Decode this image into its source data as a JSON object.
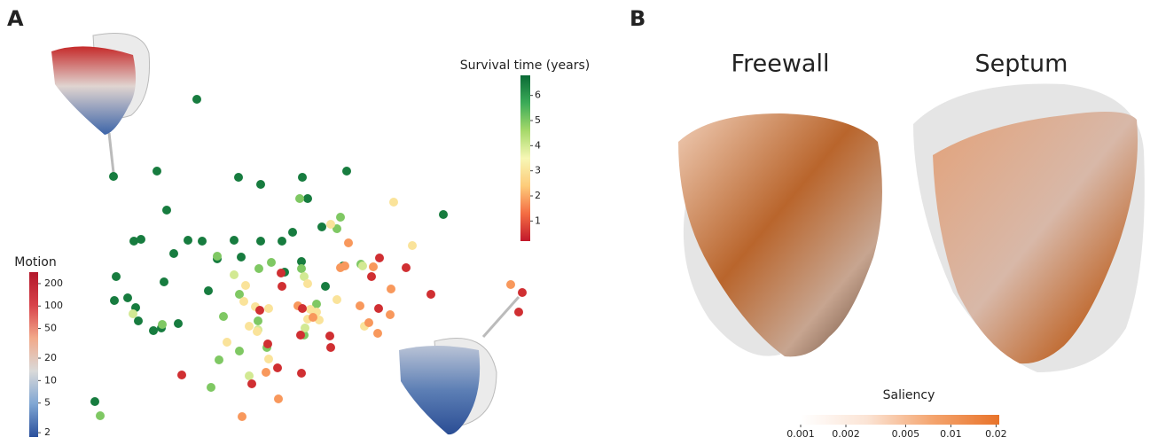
{
  "panels": [
    "A",
    "B"
  ],
  "heart_labels": [
    "Freewall",
    "Septum"
  ],
  "chart_data": [
    {
      "type": "scatter",
      "x": [
        222,
        128,
        177,
        269,
        294,
        341,
        391,
        188,
        500,
        151,
        159,
        212,
        228,
        264,
        294,
        318,
        196,
        245,
        272,
        363,
        340,
        387,
        131,
        185,
        235,
        129,
        144,
        153,
        156,
        173,
        182,
        201,
        321,
        367,
        107,
        347,
        330,
        338,
        384,
        380,
        245,
        270,
        306,
        292,
        340,
        407,
        252,
        247,
        183,
        291,
        301,
        238,
        113,
        270,
        357,
        343,
        150,
        264,
        344,
        291,
        281,
        409,
        343,
        444,
        373,
        465,
        277,
        275,
        288,
        303,
        380,
        347,
        360,
        411,
        281,
        256,
        290,
        303,
        347,
        350,
        357,
        576,
        393,
        384,
        421,
        389,
        441,
        406,
        336,
        353,
        440,
        416,
        426,
        314,
        273,
        300,
        589,
        585,
        317,
        318,
        428,
        458,
        486,
        293,
        341,
        427,
        372,
        339,
        373,
        302,
        205,
        284,
        340,
        313,
        419
      ],
      "y": [
        386,
        299,
        305,
        298,
        290,
        298,
        305,
        261,
        256,
        226,
        228,
        227,
        226,
        227,
        226,
        226,
        212,
        206,
        208,
        242,
        203,
        198,
        186,
        180,
        170,
        159,
        162,
        151,
        136,
        125,
        128,
        133,
        191,
        175,
        45,
        274,
        236,
        274,
        253,
        240,
        209,
        166,
        202,
        195,
        195,
        200,
        141,
        92,
        132,
        136,
        106,
        61,
        29,
        102,
        155,
        120,
        144,
        188,
        128,
        126,
        74,
        198,
        186,
        270,
        245,
        221,
        176,
        158,
        152,
        150,
        160,
        138,
        137,
        130,
        130,
        112,
        124,
        93,
        178,
        149,
        146,
        177,
        224,
        196,
        197,
        198,
        172,
        153,
        153,
        140,
        143,
        134,
        122,
        48,
        28,
        78,
        168,
        146,
        190,
        175,
        207,
        196,
        166,
        148,
        150,
        150,
        119,
        120,
        106,
        110,
        75,
        65,
        77,
        83,
        186
      ],
      "values": [
        6.5,
        6.5,
        6.5,
        6.5,
        6.5,
        6.5,
        6.5,
        6.5,
        6.5,
        6.5,
        6.5,
        6.5,
        6.5,
        6.5,
        6.5,
        6.5,
        6.5,
        6.5,
        6.5,
        6.5,
        6.5,
        6.5,
        6.5,
        6.5,
        6.5,
        6.5,
        6.5,
        6.5,
        6.5,
        6.5,
        6.5,
        6.5,
        6.5,
        6.5,
        6.5,
        6.5,
        6.5,
        5,
        5,
        5,
        5,
        5,
        5,
        5,
        5,
        5,
        5,
        5,
        5,
        5,
        5,
        5,
        5,
        5,
        5,
        5,
        4,
        4,
        4,
        4,
        4,
        4,
        4,
        3,
        3,
        3,
        3,
        3,
        3,
        3,
        3,
        3,
        3,
        3,
        3,
        3,
        3,
        3,
        3,
        3,
        3,
        1.8,
        1.8,
        1.8,
        1.8,
        1.8,
        1.8,
        1.8,
        1.8,
        1.8,
        1.8,
        1.8,
        1.8,
        1.8,
        1.8,
        1.8,
        0.5,
        0.5,
        0.5,
        0.5,
        0.5,
        0.5,
        0.5,
        0.5,
        0.5,
        0.5,
        0.5,
        0.5,
        0.5,
        0.5,
        0.5,
        0.5,
        0.5,
        0.5,
        0.5
      ],
      "xlim": [
        0,
        600
      ],
      "ylim": [
        0,
        498
      ]
    },
    {
      "type": "colorbar",
      "title": "Survival time (years)",
      "lim": [
        0.2,
        6.8
      ],
      "ticks": [
        1,
        2,
        3,
        4,
        5,
        6
      ],
      "colors": [
        "#c2182b",
        "#f46d43",
        "#fdcc7a",
        "#f7f7b5",
        "#a6d96a",
        "#3bab58",
        "#0a6a35"
      ]
    },
    {
      "type": "colorbar",
      "title": "Motion",
      "log": true,
      "lim": [
        1.75,
        285
      ],
      "ticks": [
        2,
        5,
        10,
        20,
        50,
        100,
        200
      ],
      "colors": [
        "#2a4f9c",
        "#7fa6d3",
        "#d9d9d9",
        "#f2a98a",
        "#d8424a",
        "#b2182b"
      ]
    },
    {
      "type": "colorbar",
      "title": "Saliency",
      "log": true,
      "lim": [
        0.001,
        0.021
      ],
      "ticks": [
        0.001,
        0.002,
        0.005,
        0.01,
        0.02
      ],
      "colors": [
        "#ffffff",
        "#fbe4d5",
        "#f4a46e",
        "#e8732a"
      ]
    }
  ]
}
